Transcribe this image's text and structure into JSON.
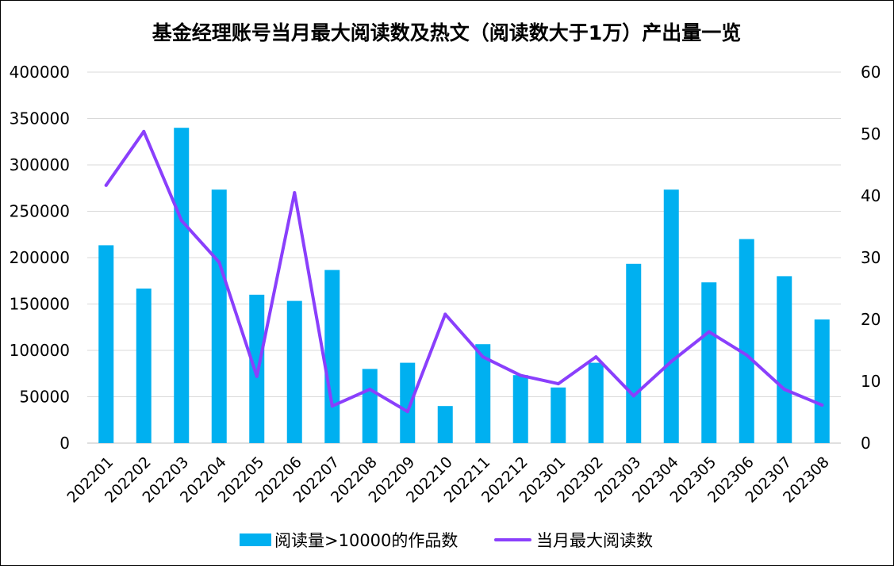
{
  "chart_data": {
    "type": "bar",
    "title": "基金经理账号当月最大阅读数及热文（阅读数大于1万）产出量一览",
    "categories": [
      "202201",
      "202202",
      "202203",
      "202204",
      "202205",
      "202206",
      "202207",
      "202208",
      "202209",
      "202210",
      "202211",
      "202212",
      "202301",
      "202302",
      "202303",
      "202304",
      "202305",
      "202306",
      "202307",
      "202308"
    ],
    "series": [
      {
        "name": "阅读量>10000的作品数",
        "type": "bar",
        "axis": "right",
        "color": "#00b0f0",
        "values": [
          32,
          25,
          51,
          41,
          24,
          23,
          28,
          12,
          13,
          6,
          16,
          11,
          9,
          13,
          29,
          41,
          26,
          33,
          27,
          20
        ]
      },
      {
        "name": "当月最大阅读数",
        "type": "line",
        "axis": "left",
        "color": "#8a3ffc",
        "values": [
          278000,
          336000,
          240000,
          195000,
          72000,
          270000,
          40000,
          58000,
          34000,
          139000,
          93000,
          73000,
          64000,
          93000,
          51000,
          88000,
          120000,
          95000,
          58000,
          41000
        ]
      }
    ],
    "y_left": {
      "min": 0,
      "max": 400000,
      "step": 50000,
      "ticks": [
        "0",
        "50000",
        "100000",
        "150000",
        "200000",
        "250000",
        "300000",
        "350000",
        "400000"
      ]
    },
    "y_right": {
      "min": 0,
      "max": 60,
      "step": 10,
      "ticks": [
        "0",
        "10",
        "20",
        "30",
        "40",
        "50",
        "60"
      ]
    },
    "grid": true,
    "legend_position": "bottom"
  }
}
